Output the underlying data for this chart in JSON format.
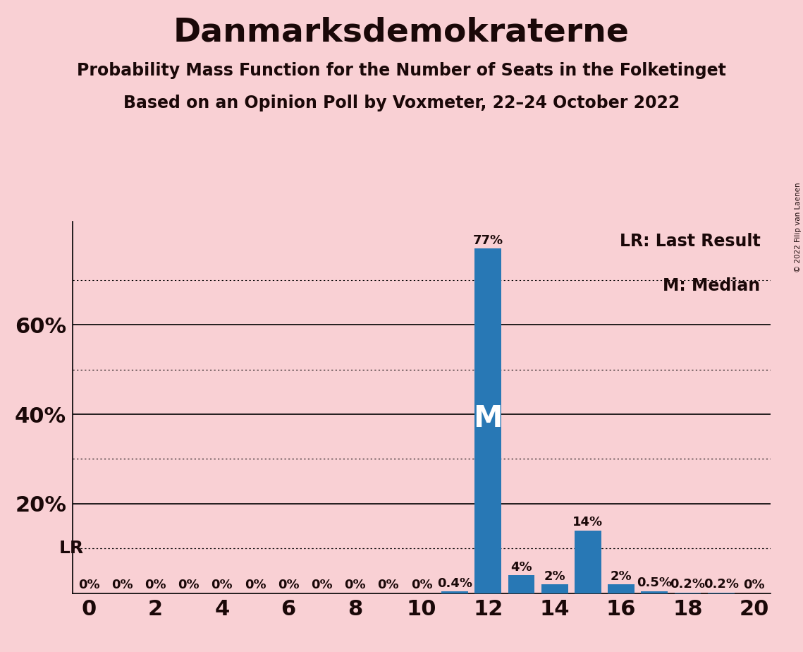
{
  "title": "Danmarksdemokraterne",
  "subtitle1": "Probability Mass Function for the Number of Seats in the Folketinget",
  "subtitle2": "Based on an Opinion Poll by Voxmeter, 22–24 October 2022",
  "copyright": "© 2022 Filip van Laenen",
  "seats": [
    0,
    1,
    2,
    3,
    4,
    5,
    6,
    7,
    8,
    9,
    10,
    11,
    12,
    13,
    14,
    15,
    16,
    17,
    18,
    19,
    20
  ],
  "probabilities": [
    0.0,
    0.0,
    0.0,
    0.0,
    0.0,
    0.0,
    0.0,
    0.0,
    0.0,
    0.0,
    0.0,
    0.4,
    77.0,
    4.0,
    2.0,
    14.0,
    2.0,
    0.5,
    0.2,
    0.2,
    0.0
  ],
  "bar_color": "#2878b5",
  "background_color": "#f9d0d4",
  "lr_value": 10.0,
  "lr_label": "LR",
  "median_seat": 12,
  "median_label": "M",
  "legend_lr": "LR: Last Result",
  "legend_m": "M: Median",
  "xlim": [
    -0.5,
    20.5
  ],
  "ylim": [
    0,
    83
  ],
  "yticks": [
    0,
    10,
    20,
    30,
    40,
    50,
    60,
    70,
    80
  ],
  "ytick_labels": [
    "",
    "",
    "20%",
    "",
    "40%",
    "",
    "60%",
    "",
    ""
  ],
  "solid_gridlines": [
    20,
    40,
    60
  ],
  "dotted_gridlines": [
    10,
    30,
    50,
    70
  ],
  "lr_gridline": 10.0,
  "title_fontsize": 34,
  "subtitle_fontsize": 17,
  "label_fontsize": 18,
  "bar_label_fontsize": 13,
  "tick_fontsize": 22,
  "median_fontsize": 30,
  "legend_fontsize": 17
}
